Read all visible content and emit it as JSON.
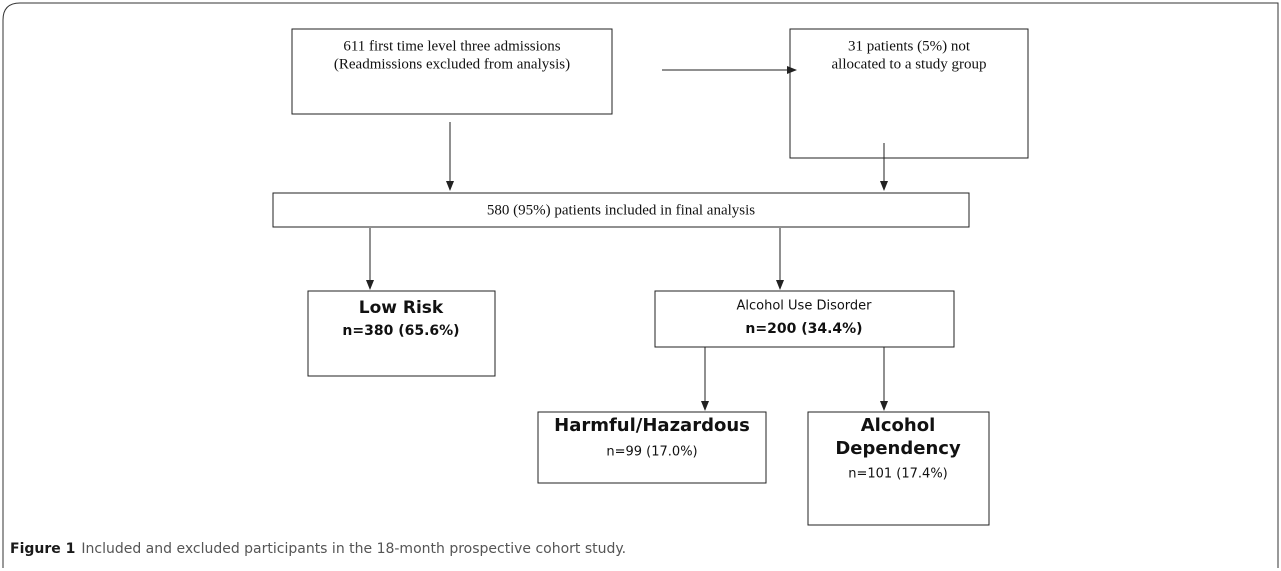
{
  "nodes": [
    {
      "lines": [
        "611 first time level three admissions",
        "(Readmissions excluded from analysis)"
      ]
    },
    {
      "lines": [
        "31 patients (5%) not",
        "allocated to a study group"
      ]
    },
    {
      "lines": [
        "580 (95%) patients included in final analysis"
      ]
    },
    {
      "lines": [
        "Low Risk",
        "n=380 (65.6%)"
      ]
    },
    {
      "lines": [
        "Alcohol Use Disorder",
        "n=200 (34.4%)"
      ]
    },
    {
      "lines": [
        "Harmful/Hazardous",
        "n=99 (17.0%)"
      ]
    },
    {
      "lines": [
        "Alcohol",
        "Dependency",
        "n=101 (17.4%)"
      ]
    }
  ],
  "caption": {
    "label": "Figure 1",
    "text": "Included and excluded participants in the 18-month prospective cohort study."
  }
}
